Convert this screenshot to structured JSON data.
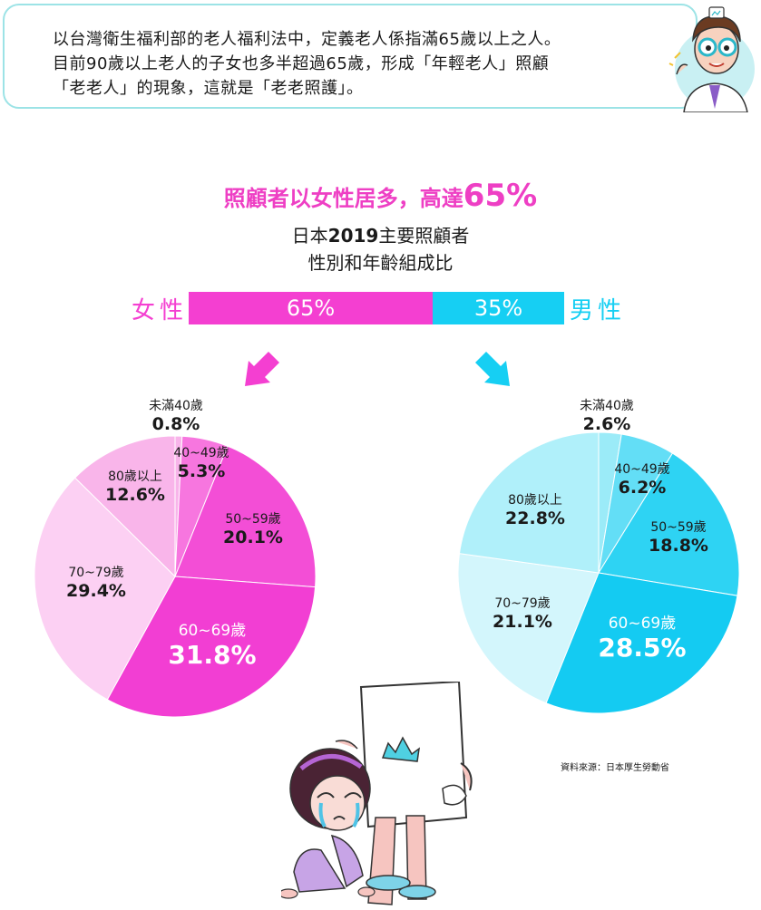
{
  "intro": {
    "lines": [
      "以台灣衛生福利部的老人福利法中，定義老人係指滿65歲以上之人。",
      "目前90歲以上老人的子女也多半超過65歲，形成「年輕老人」照顧",
      "「老老人」的現象，這就是「老老照護」。"
    ]
  },
  "headline": {
    "text": "照顧者以女性居多，高達",
    "highlight": "65%"
  },
  "subtitle": {
    "line1_prefix": "日本",
    "line1_year": "2019",
    "line1_suffix": "主要照顧者",
    "line2": "性別和年齡組成比"
  },
  "gender_bar": {
    "female_label": "女性",
    "male_label": "男性",
    "female_text": "65%",
    "male_text": "35%",
    "female_value": 65,
    "male_value": 35,
    "female_color": "#f43fd1",
    "male_color": "#16cff3"
  },
  "chart_data": [
    {
      "type": "pie",
      "title": "女性",
      "categories": [
        "未滿40歲",
        "40~49歲",
        "50~59歲",
        "60~69歲",
        "70~79歲",
        "80歲以上"
      ],
      "values": [
        0.8,
        5.3,
        20.1,
        31.8,
        29.4,
        12.6
      ],
      "labels": [
        "0.8%",
        "5.3%",
        "20.1%",
        "31.8%",
        "29.4%",
        "12.6%"
      ],
      "colors": [
        "#f8b4ea",
        "#f776df",
        "#f34ed6",
        "#f23ed3",
        "#fcd0f3",
        "#f9b5ea"
      ]
    },
    {
      "type": "pie",
      "title": "男性",
      "categories": [
        "未滿40歲",
        "40~49歲",
        "50~59歲",
        "60~69歲",
        "70~79歲",
        "80歲以上"
      ],
      "values": [
        2.6,
        6.2,
        18.8,
        28.5,
        21.1,
        22.8
      ],
      "labels": [
        "2.6%",
        "6.2%",
        "18.8%",
        "28.5%",
        "21.1%",
        "22.8%"
      ],
      "colors": [
        "#9bebf8",
        "#63def6",
        "#2ed3f3",
        "#14cbf2",
        "#d3f6fc",
        "#b0f0fa"
      ]
    }
  ],
  "source": "資料來源：日本厚生勞動省",
  "illustrations": {
    "doctor": "doctor-illustration",
    "girl": "crying-girl-illustration",
    "arrows": [
      "arrow-down-left-icon",
      "arrow-down-right-icon"
    ]
  }
}
